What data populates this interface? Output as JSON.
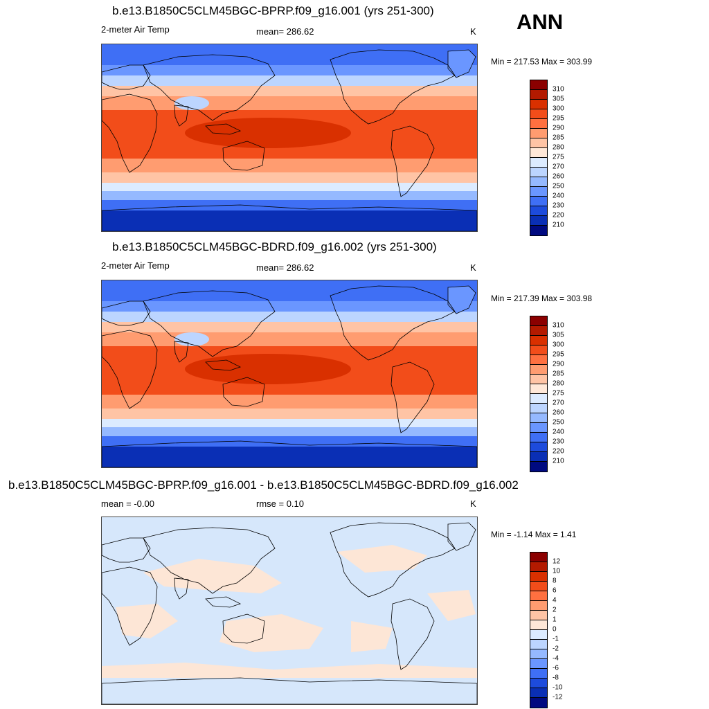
{
  "season": "ANN",
  "panels": [
    {
      "title": "b.e13.B1850C5CLM45BGC-BPRP.f09_g16.001 (yrs 251-300)",
      "left_label": "2-meter Air Temp",
      "center_label": "mean= 286.62",
      "units": "K",
      "minmax": "Min = 217.53 Max = 303.99",
      "field": "abs"
    },
    {
      "title": "b.e13.B1850C5CLM45BGC-BDRD.f09_g16.002 (yrs 251-300)",
      "left_label": "2-meter Air Temp",
      "center_label": "mean= 286.62",
      "units": "K",
      "minmax": "Min = 217.39 Max = 303.98",
      "field": "abs"
    },
    {
      "title": "b.e13.B1850C5CLM45BGC-BPRP.f09_g16.001 - b.e13.B1850C5CLM45BGC-BDRD.f09_g16.002",
      "left_label": "mean =  -0.00",
      "center_label": "rmse =   0.10",
      "units": "K",
      "minmax": "Min =  -1.14 Max =   1.41",
      "field": "diff"
    }
  ],
  "colorbars": {
    "abs": {
      "labels": [
        "310",
        "305",
        "300",
        "295",
        "290",
        "285",
        "280",
        "275",
        "270",
        "260",
        "250",
        "240",
        "230",
        "220",
        "210"
      ],
      "colors": [
        "#8b0000",
        "#b31a00",
        "#d93000",
        "#f24d1a",
        "#ff7040",
        "#ff9c70",
        "#ffc4a5",
        "#ffe8d8",
        "#dcebff",
        "#bcd5ff",
        "#95b9ff",
        "#6a96ff",
        "#3f6ff5",
        "#1d4bdc",
        "#0a2fb5",
        "#000a80"
      ]
    },
    "diff": {
      "labels": [
        "12",
        "10",
        "8",
        "6",
        "4",
        "2",
        "1",
        "0",
        "-1",
        "-2",
        "-4",
        "-6",
        "-8",
        "-10",
        "-12"
      ],
      "colors": [
        "#8b0000",
        "#b31a00",
        "#d93000",
        "#f24d1a",
        "#ff7040",
        "#ff9c70",
        "#ffc4a5",
        "#ffe8d8",
        "#dcebff",
        "#bcd5ff",
        "#95b9ff",
        "#6a96ff",
        "#3f6ff5",
        "#1d4bdc",
        "#0a2fb5",
        "#000a80"
      ]
    }
  },
  "map_colors": {
    "polar_s": "#0a2fb5",
    "south_cold": "#3f6ff5",
    "south_cool": "#95b9ff",
    "south_mild": "#dcebff",
    "sub_temp": "#ffc4a5",
    "temp": "#ff9c70",
    "warm": "#f24d1a",
    "hot": "#d93000",
    "north_cool": "#bcd5ff",
    "north_cold": "#6a96ff",
    "arctic": "#3f6ff5",
    "diff_blue": "#d6e7fb",
    "diff_peach": "#fde6d6",
    "coast": "#000000"
  }
}
